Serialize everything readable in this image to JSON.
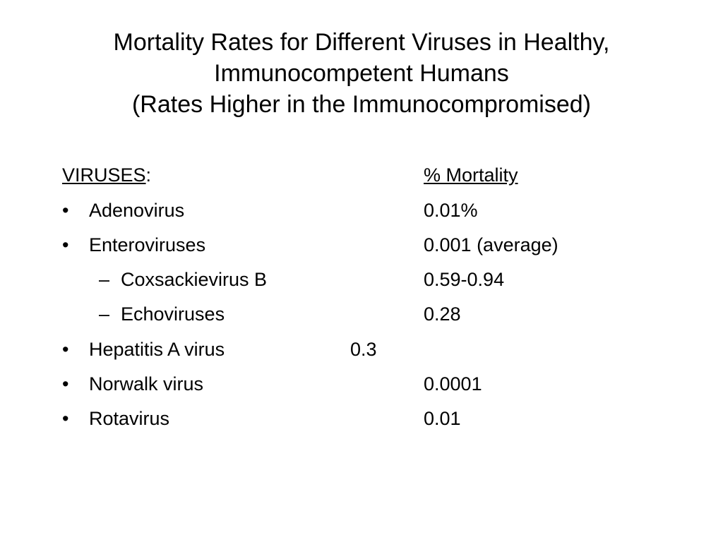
{
  "title": {
    "line1": "Mortality Rates for Different Viruses in Healthy,",
    "line2": "Immunocompetent Humans",
    "line3": "(Rates Higher in the Immunocompromised)"
  },
  "header": {
    "viruses_label": "VIRUSES",
    "colon": ":",
    "mortality_label": "% Mortality"
  },
  "rows": [
    {
      "bullet": "•",
      "name": "Adenovirus",
      "value": "0.01%"
    },
    {
      "bullet": "•",
      "name": "Enteroviruses",
      "value": "0.001 (average)"
    },
    {
      "bullet": "–",
      "name": "Coxsackievirus B",
      "value": "0.59-0.94"
    },
    {
      "bullet": "–",
      "name": "Echoviruses",
      "value": "0.28"
    },
    {
      "bullet": "•",
      "name": "Hepatitis A virus",
      "value": "0.3"
    },
    {
      "bullet": "•",
      "name": "Norwalk virus",
      "value": "0.0001"
    },
    {
      "bullet": "•",
      "name": "Rotavirus",
      "value": "0.01"
    }
  ]
}
